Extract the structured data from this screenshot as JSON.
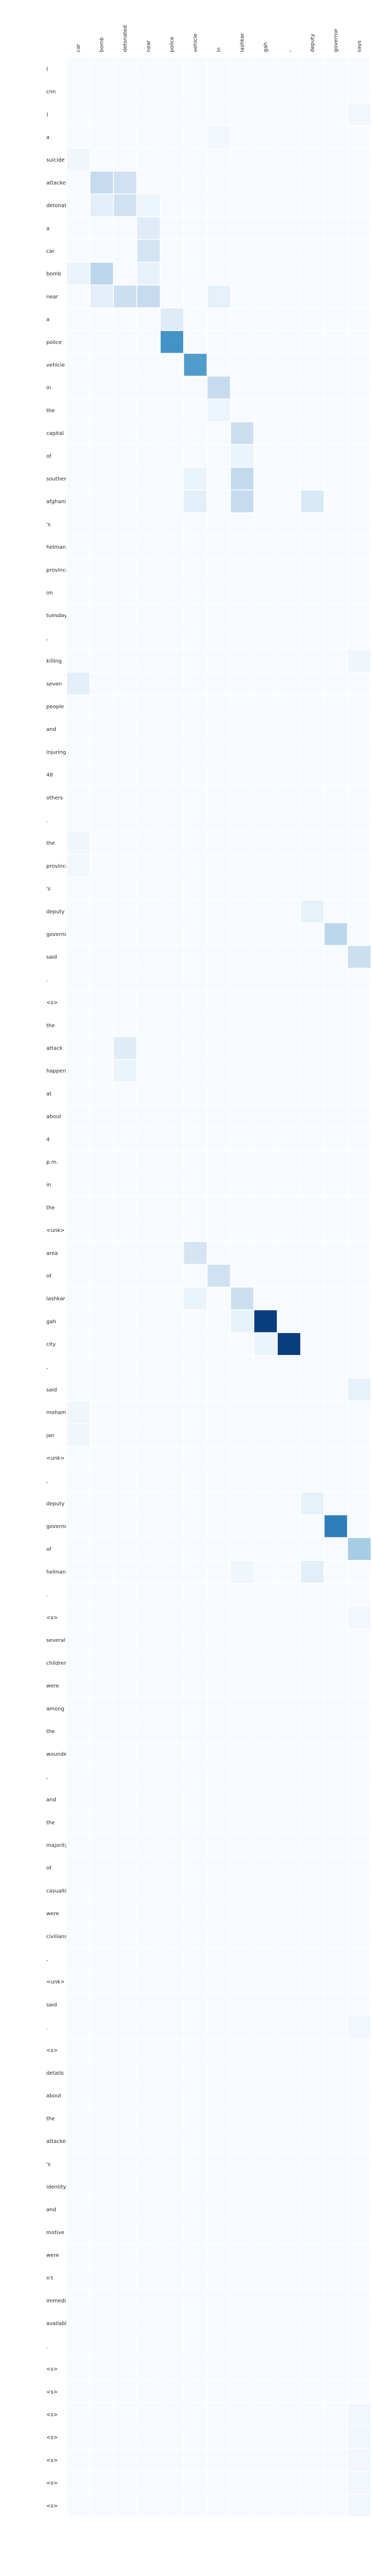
{
  "chart_data": {
    "type": "heatmap",
    "title": "",
    "xlabel": "",
    "ylabel": "",
    "colormap": "Blues",
    "cmap_colors": [
      "#f7fbff",
      "#deebf7",
      "#c6dbef",
      "#9ecae1",
      "#6baed6",
      "#4292c6",
      "#2171b5",
      "#08519c",
      "#08306b"
    ],
    "grid_line_color": "#ffffff",
    "value_range": [
      0,
      1
    ],
    "x_labels": [
      "car",
      "bomb",
      "detonated",
      "near",
      "police",
      "vehicle",
      "in",
      "lashkar",
      "gah",
      ",",
      "deputy",
      "governor",
      "says"
    ],
    "y_labels": [
      "(",
      "cnn",
      ")",
      "a",
      "suicide",
      "attacker",
      "detonated",
      "a",
      "car",
      "bomb",
      "near",
      "a",
      "police",
      "vehicle",
      "in",
      "the",
      "capital",
      "of",
      "southern",
      "afghanistan",
      "'s",
      "helmand",
      "province",
      "on",
      "tuesday",
      ",",
      "killing",
      "seven",
      "people",
      "and",
      "injuring",
      "48",
      "others",
      ".",
      "the",
      "province",
      "'s",
      "deputy",
      "governor",
      "said",
      ".",
      "<s>",
      "the",
      "attack",
      "happened",
      "at",
      "about",
      "4",
      "p.m.",
      "in",
      "the",
      "<unk>",
      "area",
      "of",
      "lashkar",
      "gah",
      "city",
      ",",
      "said",
      "mohammad",
      "jan",
      "<unk>",
      ",",
      "deputy",
      "governor",
      "of",
      "helmand",
      ".",
      "<s>",
      "several",
      "children",
      "were",
      "among",
      "the",
      "wounded",
      ",",
      "and",
      "the",
      "majority",
      "of",
      "casualties",
      "were",
      "civilians",
      ",",
      "<unk>",
      "said",
      ".",
      "<s>",
      "details",
      "about",
      "the",
      "attacker",
      "'s",
      "identity",
      "and",
      "motive",
      "were",
      "n't",
      "immediately",
      "available",
      ".",
      "<s>",
      "<s>",
      "<s>",
      "<s>",
      "<s>",
      "<s>",
      "<s>"
    ],
    "cells": [
      [
        9,
        0,
        0.06
      ],
      [
        10,
        2,
        0.05
      ],
      [
        5,
        1,
        0.25
      ],
      [
        5,
        2,
        0.2
      ],
      [
        6,
        1,
        0.1
      ],
      [
        6,
        2,
        0.2
      ],
      [
        6,
        3,
        0.05
      ],
      [
        7,
        3,
        0.12
      ],
      [
        8,
        3,
        0.18
      ],
      [
        9,
        1,
        0.28
      ],
      [
        9,
        3,
        0.08
      ],
      [
        10,
        1,
        0.1
      ],
      [
        10,
        2,
        0.22
      ],
      [
        10,
        3,
        0.25
      ],
      [
        10,
        6,
        0.08
      ],
      [
        11,
        4,
        0.12
      ],
      [
        12,
        4,
        0.62
      ],
      [
        13,
        5,
        0.58
      ],
      [
        14,
        6,
        0.25
      ],
      [
        15,
        6,
        0.05
      ],
      [
        16,
        7,
        0.22
      ],
      [
        17,
        7,
        0.06
      ],
      [
        18,
        7,
        0.26
      ],
      [
        18,
        5,
        0.06
      ],
      [
        19,
        7,
        0.25
      ],
      [
        19,
        5,
        0.1
      ],
      [
        19,
        10,
        0.15
      ],
      [
        4,
        0,
        0.04
      ],
      [
        3,
        6,
        0.03
      ],
      [
        2,
        12,
        0.03
      ],
      [
        26,
        12,
        0.04
      ],
      [
        27,
        0,
        0.1
      ],
      [
        34,
        0,
        0.04
      ],
      [
        35,
        0,
        0.03
      ],
      [
        37,
        10,
        0.08
      ],
      [
        38,
        11,
        0.28
      ],
      [
        39,
        12,
        0.22
      ],
      [
        43,
        2,
        0.12
      ],
      [
        44,
        2,
        0.06
      ],
      [
        52,
        5,
        0.18
      ],
      [
        53,
        6,
        0.2
      ],
      [
        54,
        5,
        0.06
      ],
      [
        54,
        7,
        0.22
      ],
      [
        55,
        8,
        0.95
      ],
      [
        55,
        7,
        0.08
      ],
      [
        56,
        9,
        0.95
      ],
      [
        56,
        8,
        0.06
      ],
      [
        58,
        12,
        0.08
      ],
      [
        59,
        0,
        0.04
      ],
      [
        60,
        0,
        0.04
      ],
      [
        63,
        10,
        0.08
      ],
      [
        64,
        11,
        0.7
      ],
      [
        65,
        12,
        0.35
      ],
      [
        66,
        10,
        0.1
      ],
      [
        66,
        7,
        0.04
      ],
      [
        68,
        12,
        0.03
      ],
      [
        86,
        12,
        0.03
      ],
      [
        103,
        12,
        0.03
      ],
      [
        104,
        12,
        0.03
      ],
      [
        105,
        12,
        0.03
      ],
      [
        106,
        12,
        0.03
      ],
      [
        107,
        12,
        0.03
      ],
      [
        108,
        12,
        0.03
      ],
      [
        109,
        12,
        0.03
      ]
    ]
  }
}
